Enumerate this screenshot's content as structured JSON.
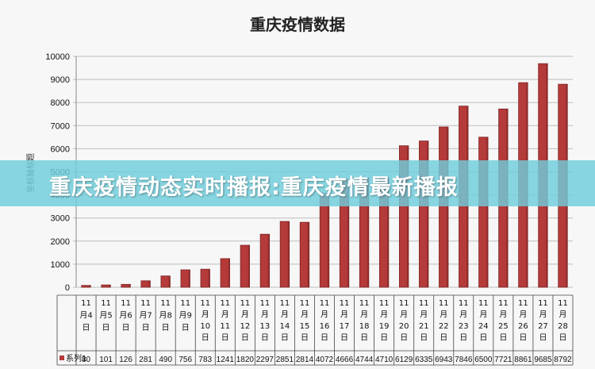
{
  "banner": {
    "text": "重庆疫情动态实时播报:重庆疫情最新播报"
  },
  "colors": {
    "bar": "#b53a3a",
    "bar_dark": "#7e2424",
    "banner": "#6ecddc"
  },
  "chart_data": {
    "type": "bar",
    "title": "重庆疫情数据",
    "ylabel": "坐标轴标题",
    "xlabel": "",
    "ylim": [
      0,
      10000
    ],
    "yticks": [
      0,
      1000,
      2000,
      3000,
      4000,
      5000,
      6000,
      7000,
      8000,
      9000,
      10000
    ],
    "grid": true,
    "legend": "bottom-left-table",
    "categories": [
      "11月4日",
      "11月5日",
      "11月6日",
      "11月7日",
      "11月8日",
      "11月9日",
      "11月10日",
      "11月11日",
      "11月12日",
      "11月13日",
      "11月14日",
      "11月15日",
      "11月16日",
      "11月17日",
      "11月18日",
      "11月19日",
      "11月20日",
      "11月21日",
      "11月22日",
      "11月23日",
      "11月24日",
      "11月25日",
      "11月26日",
      "11月27日",
      "11月28日"
    ],
    "category_lines": [
      [
        "11",
        "月4",
        "日"
      ],
      [
        "11",
        "月5",
        "日"
      ],
      [
        "11",
        "月6",
        "日"
      ],
      [
        "11",
        "月7",
        "日"
      ],
      [
        "11",
        "月8",
        "日"
      ],
      [
        "11",
        "月9",
        "日"
      ],
      [
        "11",
        "月",
        "10",
        "日"
      ],
      [
        "11",
        "月",
        "11",
        "日"
      ],
      [
        "11",
        "月",
        "12",
        "日"
      ],
      [
        "11",
        "月",
        "13",
        "日"
      ],
      [
        "11",
        "月",
        "14",
        "日"
      ],
      [
        "11",
        "月",
        "15",
        "日"
      ],
      [
        "11",
        "月",
        "16",
        "日"
      ],
      [
        "11",
        "月",
        "17",
        "日"
      ],
      [
        "11",
        "月",
        "18",
        "日"
      ],
      [
        "11",
        "月",
        "19",
        "日"
      ],
      [
        "11",
        "月",
        "20",
        "日"
      ],
      [
        "11",
        "月",
        "21",
        "日"
      ],
      [
        "11",
        "月",
        "22",
        "日"
      ],
      [
        "11",
        "月",
        "23",
        "日"
      ],
      [
        "11",
        "月",
        "24",
        "日"
      ],
      [
        "11",
        "月",
        "25",
        "日"
      ],
      [
        "11",
        "月",
        "26",
        "日"
      ],
      [
        "11",
        "月",
        "27",
        "日"
      ],
      [
        "11",
        "月",
        "28",
        "日"
      ]
    ],
    "series": [
      {
        "name": "系列1",
        "values": [
          80,
          101,
          126,
          281,
          490,
          756,
          783,
          1241,
          1820,
          2297,
          2851,
          2814,
          4072,
          4666,
          4744,
          4710,
          6129,
          6335,
          6943,
          7846,
          6500,
          7721,
          8861,
          9685,
          8792
        ]
      }
    ]
  }
}
